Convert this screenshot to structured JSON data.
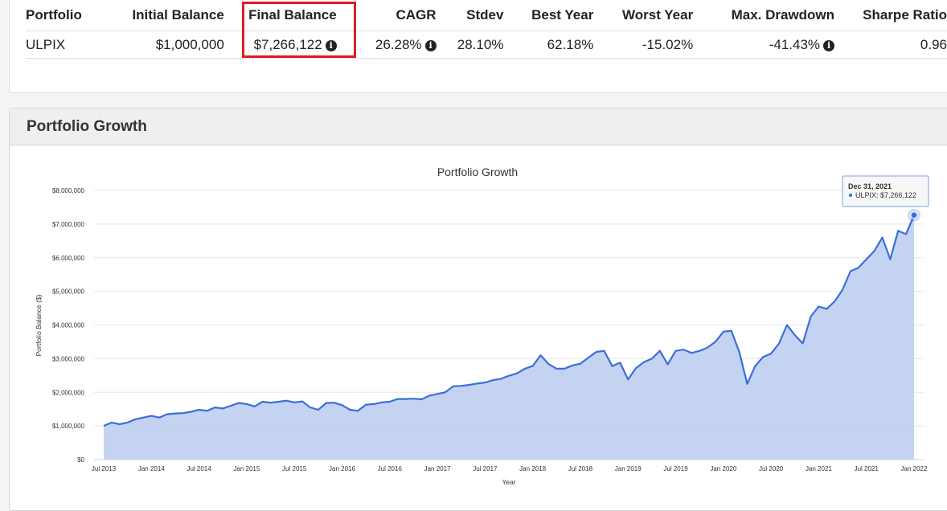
{
  "summary": {
    "headers": [
      "Portfolio",
      "Initial Balance",
      "Final Balance",
      "CAGR",
      "Stdev",
      "Best Year",
      "Worst Year",
      "Max. Drawdown",
      "Sharpe Ratio"
    ],
    "row": {
      "portfolio": "ULPIX",
      "initial_balance": "$1,000,000",
      "final_balance": "$7,266,122",
      "cagr": "26.28%",
      "stdev": "28.10%",
      "best_year": "62.18%",
      "worst_year": "-15.02%",
      "max_drawdown": "-41.43%",
      "sharpe_ratio": "0.96"
    },
    "highlight_color": "#e01b24"
  },
  "growth_panel": {
    "title": "Portfolio Growth"
  },
  "icons": {
    "info": "info-circle-icon"
  },
  "chart_data": {
    "type": "area",
    "title": "Portfolio Growth",
    "xlabel": "Year",
    "ylabel": "Portfolio Balance ($)",
    "ylim": [
      0,
      8000000
    ],
    "y_ticks": [
      "$0",
      "$1,000,000",
      "$2,000,000",
      "$3,000,000",
      "$4,000,000",
      "$5,000,000",
      "$6,000,000",
      "$7,000,000",
      "$8,000,000"
    ],
    "x_ticks": [
      "Jul 2013",
      "Jan 2014",
      "Jul 2014",
      "Jan 2015",
      "Jul 2015",
      "Jan 2016",
      "Jul 2016",
      "Jan 2017",
      "Jul 2017",
      "Jan 2018",
      "Jul 2018",
      "Jan 2019",
      "Jul 2019",
      "Jan 2020",
      "Jul 2020",
      "Jan 2021",
      "Jul 2021",
      "Jan 2022"
    ],
    "grid": true,
    "legend": "none",
    "line_color": "#3a6fd6",
    "fill_color": "#c2d1f1",
    "series": [
      {
        "name": "ULPIX",
        "start": "2013-07",
        "values": [
          1000000,
          1100000,
          1050000,
          1100000,
          1200000,
          1250000,
          1300000,
          1250000,
          1350000,
          1370000,
          1380000,
          1420000,
          1480000,
          1450000,
          1550000,
          1520000,
          1600000,
          1680000,
          1650000,
          1580000,
          1720000,
          1690000,
          1720000,
          1750000,
          1700000,
          1730000,
          1550000,
          1480000,
          1680000,
          1690000,
          1620000,
          1480000,
          1450000,
          1630000,
          1650000,
          1700000,
          1720000,
          1800000,
          1800000,
          1810000,
          1790000,
          1900000,
          1950000,
          2000000,
          2180000,
          2190000,
          2220000,
          2260000,
          2290000,
          2360000,
          2400000,
          2490000,
          2560000,
          2700000,
          2780000,
          3100000,
          2840000,
          2700000,
          2700000,
          2800000,
          2850000,
          3030000,
          3200000,
          3230000,
          2780000,
          2880000,
          2380000,
          2720000,
          2900000,
          3000000,
          3230000,
          2830000,
          3230000,
          3270000,
          3170000,
          3230000,
          3330000,
          3500000,
          3800000,
          3830000,
          3200000,
          2250000,
          2780000,
          3050000,
          3150000,
          3450000,
          4000000,
          3700000,
          3450000,
          4250000,
          4550000,
          4480000,
          4700000,
          5050000,
          5600000,
          5700000,
          5950000,
          6200000,
          6600000,
          5950000,
          6800000,
          6700000,
          7266122
        ]
      }
    ],
    "tooltip": {
      "date": "Dec 31, 2021",
      "label": "ULPIX: $7,266,122"
    }
  }
}
